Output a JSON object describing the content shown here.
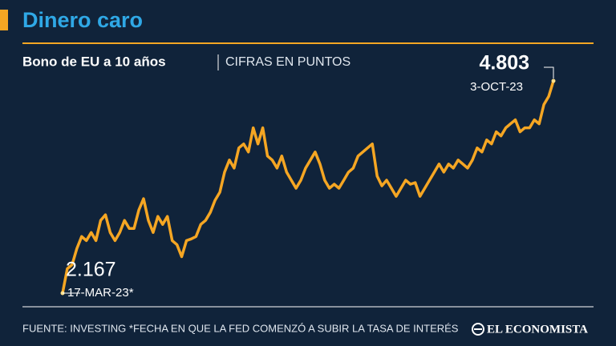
{
  "chart_data": {
    "type": "line",
    "title": "Dinero caro",
    "subtitle": "Bono de EU a 10 años",
    "units_note": "CIFRAS EN PUNTOS",
    "source": "FUENTE: INVESTING *FECHA EN QUE LA FED COMENZÓ A SUBIR LA TASA DE INTERÉS",
    "brand": "EL ECONOMISTA",
    "color": "#f5a623",
    "categories": [
      "17-MAR-23*",
      null,
      null,
      null,
      null,
      null,
      null,
      null,
      null,
      null,
      null,
      null,
      null,
      null,
      null,
      null,
      null,
      null,
      null,
      null,
      null,
      null,
      null,
      null,
      null,
      null,
      null,
      null,
      null,
      null,
      null,
      null,
      null,
      null,
      null,
      null,
      null,
      null,
      null,
      null,
      null,
      null,
      null,
      null,
      null,
      null,
      null,
      null,
      null,
      null,
      null,
      null,
      null,
      null,
      null,
      null,
      null,
      null,
      null,
      null,
      null,
      null,
      null,
      null,
      null,
      null,
      null,
      null,
      null,
      null,
      null,
      null,
      null,
      null,
      null,
      null,
      null,
      null,
      null,
      null,
      null,
      null,
      null,
      null,
      null,
      null,
      null,
      null,
      null,
      null,
      null,
      null,
      null,
      null,
      null,
      null,
      null,
      null,
      null,
      null,
      null,
      null,
      null,
      "3-OCT-23"
    ],
    "values": [
      2.167,
      2.47,
      2.52,
      2.72,
      2.87,
      2.82,
      2.92,
      2.82,
      3.07,
      3.14,
      2.92,
      2.82,
      2.92,
      3.07,
      2.97,
      2.97,
      3.2,
      3.34,
      3.07,
      2.92,
      3.12,
      3.02,
      3.12,
      2.82,
      2.77,
      2.62,
      2.82,
      2.84,
      2.87,
      3.02,
      3.07,
      3.17,
      3.32,
      3.42,
      3.67,
      3.82,
      3.72,
      3.97,
      4.02,
      3.92,
      4.22,
      4.02,
      4.22,
      3.87,
      3.82,
      3.72,
      3.87,
      3.67,
      3.57,
      3.47,
      3.57,
      3.72,
      3.82,
      3.92,
      3.77,
      3.57,
      3.47,
      3.52,
      3.47,
      3.57,
      3.67,
      3.72,
      3.87,
      3.92,
      3.97,
      4.02,
      3.62,
      3.5,
      3.57,
      3.47,
      3.37,
      3.47,
      3.57,
      3.52,
      3.54,
      3.37,
      3.47,
      3.57,
      3.67,
      3.77,
      3.67,
      3.77,
      3.72,
      3.82,
      3.77,
      3.72,
      3.82,
      3.97,
      3.92,
      4.07,
      4.02,
      4.17,
      4.12,
      4.22,
      4.27,
      4.32,
      4.17,
      4.22,
      4.22,
      4.32,
      4.27,
      4.51,
      4.61,
      4.803
    ]
  }
}
